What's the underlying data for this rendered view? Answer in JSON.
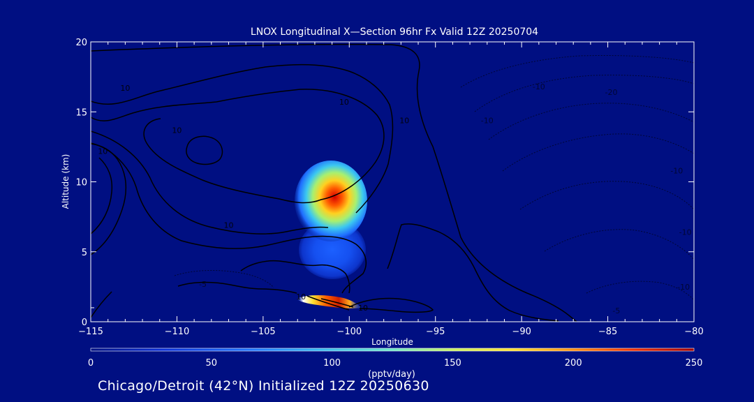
{
  "chart_data": {
    "type": "heatmap",
    "title": "LNOX Longitudinal X—Section 96hr  Fx Valid 12Z 20250704",
    "xlabel": "Longitude",
    "ylabel": "Altitude (km)",
    "xlim": [
      -115,
      -80
    ],
    "ylim": [
      0,
      20
    ],
    "x_ticks": [
      -115,
      -110,
      -105,
      -100,
      -95,
      -90,
      -85,
      -80
    ],
    "x_tick_labels": [
      "−115",
      "−110",
      "−105",
      "−100",
      "−95",
      "−90",
      "−85",
      "−80"
    ],
    "y_ticks": [
      0,
      5,
      10,
      15,
      20
    ],
    "y_tick_labels": [
      "0",
      "5",
      "10",
      "15",
      "20"
    ],
    "colorbar": {
      "label": "(pptv/day)",
      "min": 0,
      "max": 250,
      "ticks": [
        0,
        50,
        100,
        150,
        200,
        250
      ],
      "tick_labels": [
        "0",
        "50",
        "100",
        "150",
        "200",
        "250"
      ]
    },
    "filled_regions": [
      {
        "name": "upper-tropospheric maximum",
        "lon": -101,
        "alt": 8.6,
        "peak": 210
      },
      {
        "name": "mid-level plume",
        "lon": -101,
        "alt": 5.2,
        "peak": 70
      },
      {
        "name": "boundary-layer streak",
        "lon": -101,
        "alt": 1.1,
        "peak": 240
      }
    ],
    "contour_labels": [
      {
        "text": "10",
        "lon": -113,
        "alt": 16.5
      },
      {
        "text": "10",
        "lon": -110,
        "alt": 13.5
      },
      {
        "text": "10",
        "lon": -114.3,
        "alt": 12.0
      },
      {
        "text": "10",
        "lon": -100.3,
        "alt": 15.5
      },
      {
        "text": "10",
        "lon": -107,
        "alt": 6.7
      },
      {
        "text": "10",
        "lon": -96.8,
        "alt": 14.2
      },
      {
        "text": "10",
        "lon": -102.8,
        "alt": 1.6
      },
      {
        "text": "10",
        "lon": -99.2,
        "alt": 0.8
      },
      {
        "text": "-10",
        "lon": -92,
        "alt": 14.2
      },
      {
        "text": "-20",
        "lon": -84.8,
        "alt": 16.2
      },
      {
        "text": "-10",
        "lon": -89,
        "alt": 16.6
      },
      {
        "text": "-10",
        "lon": -81,
        "alt": 10.6
      },
      {
        "text": "-10",
        "lon": -80.5,
        "alt": 6.2
      },
      {
        "text": "-10",
        "lon": -80.6,
        "alt": 2.3
      },
      {
        "text": "-5",
        "lon": -84.5,
        "alt": 0.6
      },
      {
        "text": "-5",
        "lon": -108.5,
        "alt": 2.5
      }
    ]
  },
  "footer_text": "Chicago/Detroit (42°N) Initialized 12Z 20250630",
  "colors": {
    "background": "#000f82",
    "contour": "#000000",
    "axes": "#ffffff"
  }
}
